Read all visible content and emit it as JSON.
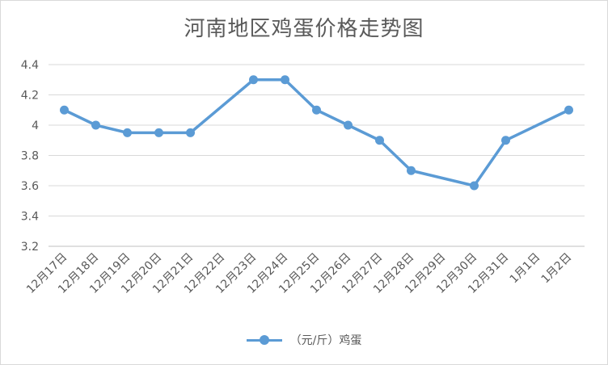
{
  "chart_data": {
    "type": "line",
    "title": "河南地区鸡蛋价格走势图",
    "xlabel": "",
    "ylabel": "",
    "categories": [
      "12月17日",
      "12月18日",
      "12月19日",
      "12月20日",
      "12月21日",
      "12月22日",
      "12月23日",
      "12月24日",
      "12月25日",
      "12月26日",
      "12月27日",
      "12月28日",
      "12月29日",
      "12月30日",
      "12月31日",
      "1月1日",
      "1月2日"
    ],
    "series": [
      {
        "name": "（元/斤）鸡蛋",
        "values": [
          4.1,
          4.0,
          3.95,
          3.95,
          3.95,
          null,
          4.3,
          4.3,
          4.1,
          4.0,
          3.9,
          3.7,
          null,
          3.6,
          3.9,
          null,
          4.1
        ],
        "color": "#5b9bd5"
      }
    ],
    "ylim": [
      3.2,
      4.4
    ],
    "yticks": [
      "3.2",
      "3.4",
      "3.6",
      "3.8",
      "4",
      "4.2",
      "4.4"
    ],
    "ytick_values": [
      3.2,
      3.4,
      3.6,
      3.8,
      4.0,
      4.2,
      4.4
    ],
    "grid": true,
    "legend_position": "bottom",
    "gaps": "connect"
  }
}
